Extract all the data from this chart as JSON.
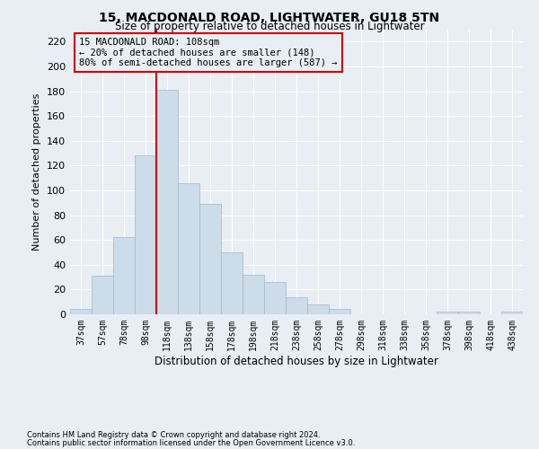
{
  "title": "15, MACDONALD ROAD, LIGHTWATER, GU18 5TN",
  "subtitle": "Size of property relative to detached houses in Lightwater",
  "xlabel": "Distribution of detached houses by size in Lightwater",
  "ylabel": "Number of detached properties",
  "bar_color": "#ccdce8",
  "bar_edge_color": "#a0b8cc",
  "categories": [
    "37sqm",
    "57sqm",
    "78sqm",
    "98sqm",
    "118sqm",
    "138sqm",
    "158sqm",
    "178sqm",
    "198sqm",
    "218sqm",
    "238sqm",
    "258sqm",
    "278sqm",
    "298sqm",
    "318sqm",
    "338sqm",
    "358sqm",
    "378sqm",
    "398sqm",
    "418sqm",
    "438sqm"
  ],
  "values": [
    4,
    31,
    62,
    128,
    181,
    106,
    89,
    50,
    32,
    26,
    14,
    8,
    4,
    0,
    0,
    0,
    0,
    2,
    2,
    0,
    2
  ],
  "ylim": [
    0,
    230
  ],
  "yticks": [
    0,
    20,
    40,
    60,
    80,
    100,
    120,
    140,
    160,
    180,
    200,
    220
  ],
  "vline_x": 3.5,
  "vline_color": "#cc0000",
  "annotation_text": "15 MACDONALD ROAD: 108sqm\n← 20% of detached houses are smaller (148)\n80% of semi-detached houses are larger (587) →",
  "annotation_box_color": "#cc0000",
  "footer_line1": "Contains HM Land Registry data © Crown copyright and database right 2024.",
  "footer_line2": "Contains public sector information licensed under the Open Government Licence v3.0.",
  "background_color": "#e8eef4",
  "grid_color": "#ffffff"
}
